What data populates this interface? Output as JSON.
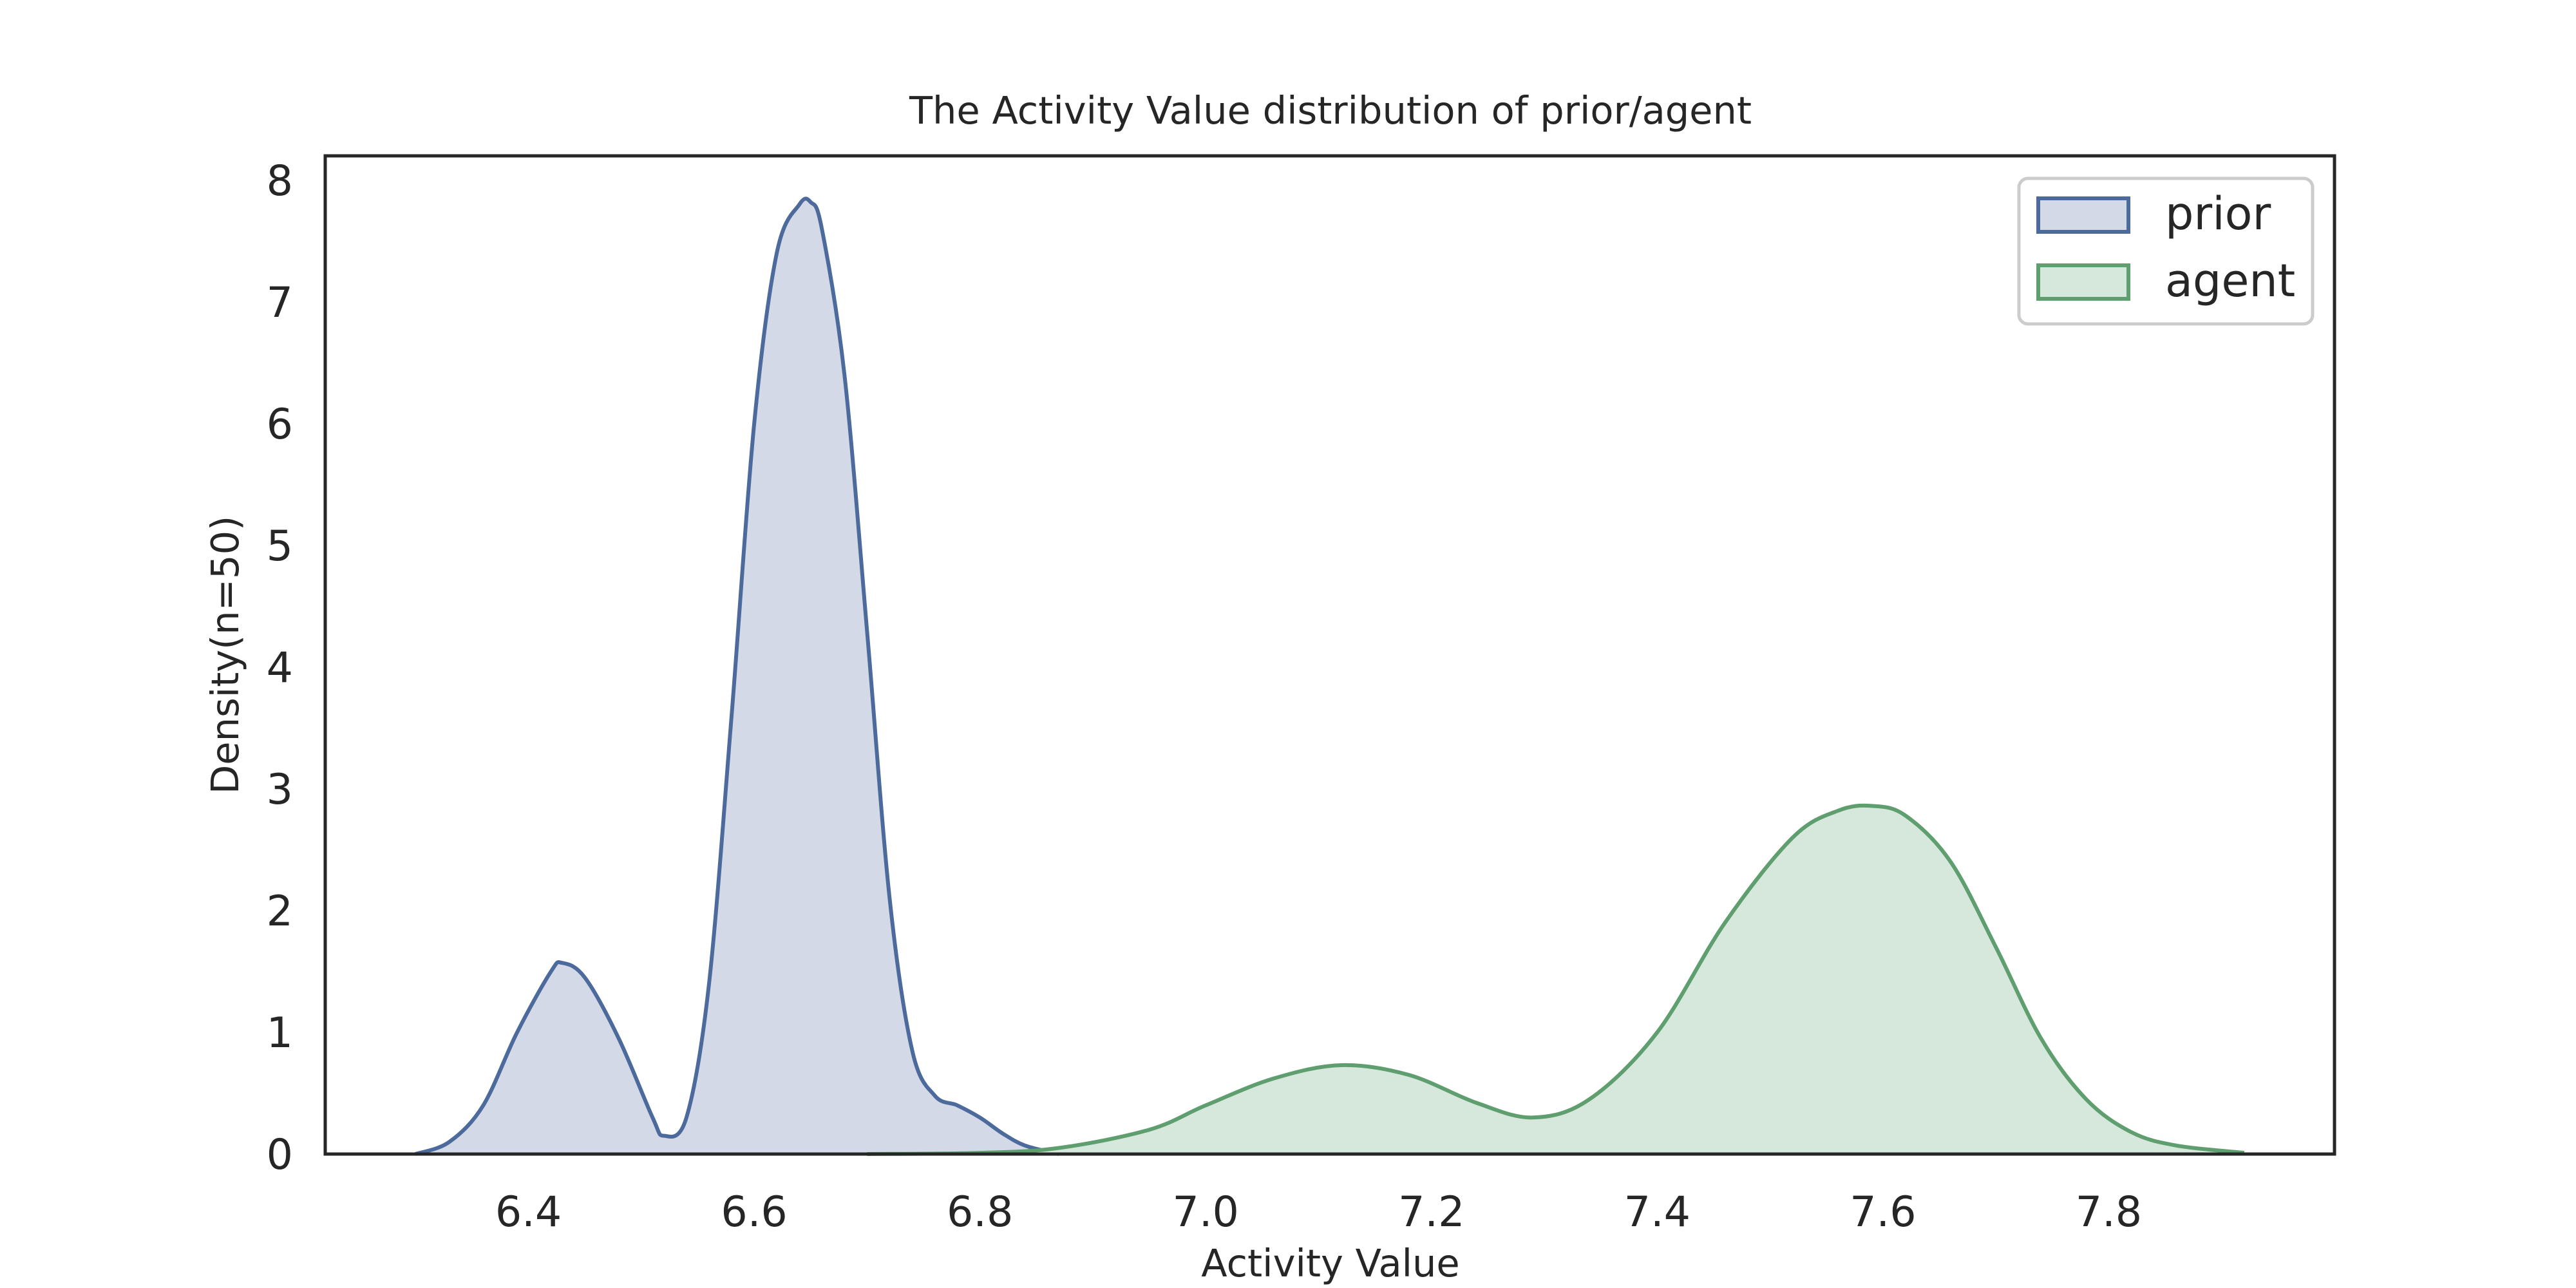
{
  "chart_data": {
    "type": "area",
    "title": "The Activity Value distribution of prior/agent",
    "xlabel": "Activity Value",
    "ylabel": "Density(n=50)",
    "xlim": [
      6.22,
      8.0
    ],
    "ylim": [
      0,
      8.2
    ],
    "xticks": [
      "6.4",
      "6.6",
      "6.8",
      "7.0",
      "7.2",
      "7.4",
      "7.6",
      "7.8"
    ],
    "yticks": [
      "0",
      "1",
      "2",
      "3",
      "4",
      "5",
      "6",
      "7",
      "8"
    ],
    "grid": false,
    "legend_position": "top-right",
    "series": [
      {
        "name": "prior",
        "color": "#4c6a9c",
        "fill": "#d3d9e6",
        "x": [
          6.3,
          6.33,
          6.36,
          6.39,
          6.42,
          6.43,
          6.45,
          6.48,
          6.51,
          6.52,
          6.54,
          6.56,
          6.58,
          6.6,
          6.62,
          6.64,
          6.65,
          6.66,
          6.68,
          6.7,
          6.72,
          6.74,
          6.76,
          6.78,
          6.8,
          6.82,
          6.84,
          6.87
        ],
        "y": [
          0.0,
          0.1,
          0.4,
          1.0,
          1.5,
          1.57,
          1.45,
          0.95,
          0.3,
          0.15,
          0.3,
          1.4,
          3.6,
          6.0,
          7.4,
          7.8,
          7.82,
          7.6,
          6.4,
          4.3,
          2.1,
          0.85,
          0.48,
          0.4,
          0.3,
          0.17,
          0.07,
          0.0
        ]
      },
      {
        "name": "agent",
        "color": "#5f9e6e",
        "fill": "#d6e7db",
        "x": [
          6.7,
          6.8,
          6.87,
          6.95,
          7.0,
          7.06,
          7.12,
          7.18,
          7.24,
          7.29,
          7.34,
          7.4,
          7.46,
          7.52,
          7.56,
          7.59,
          7.62,
          7.66,
          7.7,
          7.74,
          7.78,
          7.82,
          7.86,
          7.92
        ],
        "y": [
          0.0,
          0.01,
          0.05,
          0.2,
          0.4,
          0.62,
          0.73,
          0.65,
          0.42,
          0.3,
          0.45,
          1.0,
          1.9,
          2.6,
          2.82,
          2.86,
          2.78,
          2.4,
          1.7,
          0.95,
          0.45,
          0.18,
          0.07,
          0.01
        ]
      }
    ]
  }
}
